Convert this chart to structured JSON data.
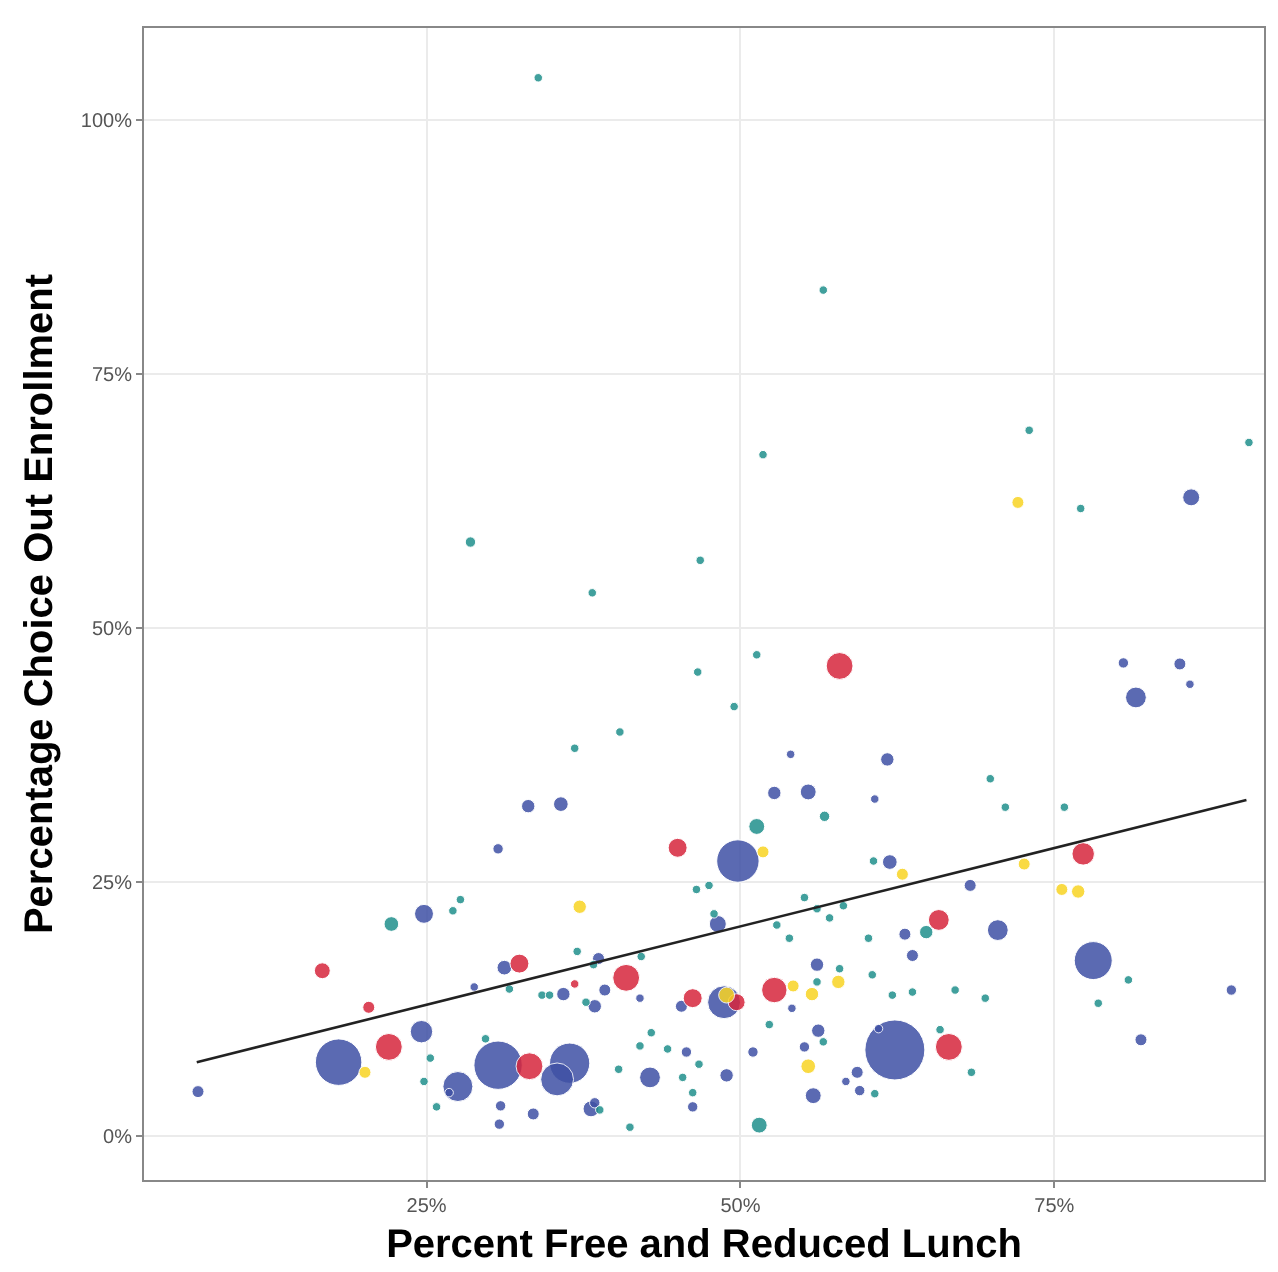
{
  "chart_data": {
    "type": "bubble",
    "xlabel": "Percent Free and Reduced Lunch",
    "ylabel": "Percentage Choice Out Enrollment",
    "xlim": [
      2.5,
      91.7
    ],
    "ylim": [
      -4.3,
      109.1
    ],
    "xticks": [
      {
        "value": 25,
        "label": "25%"
      },
      {
        "value": 50,
        "label": "50%"
      },
      {
        "value": 75,
        "label": "75%"
      }
    ],
    "yticks": [
      {
        "value": 0,
        "label": "0%"
      },
      {
        "value": 25,
        "label": "25%"
      },
      {
        "value": 50,
        "label": "50%"
      },
      {
        "value": 75,
        "label": "75%"
      },
      {
        "value": 100,
        "label": "100%"
      }
    ],
    "grid": true,
    "marker": "circle",
    "series": [
      {
        "color": "#3f51a5",
        "x": [
          85.9,
          80.5,
          85.0,
          85.8,
          81.5,
          68.3,
          70.5,
          63.1,
          63.7,
          78.1,
          89.1,
          81.9,
          62.3,
          54.0,
          61.7,
          52.7,
          55.4,
          60.7,
          33.1,
          35.7,
          49.8,
          61.9,
          48.2,
          56.1,
          38.7,
          35.9,
          39.2,
          38.4,
          45.3,
          42.0,
          48.7,
          54.1,
          36.4,
          35.4,
          42.8,
          45.7,
          51.0,
          48.9,
          56.2,
          55.1,
          59.3,
          58.4,
          59.5,
          55.8,
          46.2,
          38.1,
          38.4,
          33.5,
          30.7,
          24.8,
          31.2,
          28.8,
          24.6,
          18.0,
          27.5,
          30.7,
          30.9,
          30.8,
          26.8,
          6.8,
          61.0
        ],
        "values": [
          62.9,
          46.6,
          46.5,
          44.5,
          43.2,
          24.7,
          20.3,
          19.9,
          17.8,
          17.3,
          14.4,
          9.5,
          8.5,
          37.6,
          37.1,
          33.8,
          33.9,
          33.2,
          32.5,
          32.7,
          27.1,
          27.0,
          20.9,
          16.9,
          17.5,
          14.0,
          14.4,
          12.8,
          12.8,
          13.6,
          13.2,
          12.6,
          7.2,
          5.6,
          5.8,
          8.3,
          8.3,
          6.0,
          10.4,
          8.8,
          6.3,
          5.4,
          4.5,
          4.0,
          2.9,
          2.7,
          3.3,
          2.2,
          28.3,
          21.9,
          16.6,
          14.7,
          10.3,
          7.3,
          4.9,
          7.0,
          3.0,
          1.2,
          4.3,
          4.4,
          10.6
        ],
        "sizes": [
          0.08,
          0.03,
          0.04,
          0.02,
          0.12,
          0.04,
          0.12,
          0.04,
          0.04,
          0.4,
          0.03,
          0.04,
          1,
          0.02,
          0.05,
          0.05,
          0.07,
          0.02,
          0.05,
          0.06,
          0.5,
          0.06,
          0.08,
          0.05,
          0.04,
          0.05,
          0.04,
          0.05,
          0.04,
          0.02,
          0.3,
          0.02,
          0.45,
          0.3,
          0.12,
          0.03,
          0.03,
          0.05,
          0.05,
          0.03,
          0.04,
          0.02,
          0.03,
          0.07,
          0.03,
          0.07,
          0.03,
          0.04,
          0.03,
          0.1,
          0.06,
          0.02,
          0.14,
          0.6,
          0.25,
          0.65,
          0.03,
          0.03,
          0.02,
          0.04,
          0.02
        ]
      },
      {
        "color": "#d7263d",
        "x": [
          57.9,
          45.0,
          40.9,
          36.8,
          46.2,
          52.7,
          49.7,
          33.2,
          16.7,
          20.4,
          22.0,
          32.4,
          77.3,
          65.8,
          66.6
        ],
        "values": [
          46.3,
          28.4,
          15.6,
          15.0,
          13.6,
          14.4,
          13.2,
          6.9,
          16.3,
          12.7,
          8.8,
          17.0,
          27.8,
          21.3,
          8.8
        ],
        "sizes": [
          0.2,
          0.1,
          0.2,
          0.02,
          0.1,
          0.18,
          0.08,
          0.2,
          0.07,
          0.04,
          0.2,
          0.1,
          0.14,
          0.12,
          0.2
        ]
      },
      {
        "color": "#f9d423",
        "x": [
          72.1,
          37.2,
          51.8,
          48.9,
          54.2,
          55.7,
          57.8,
          55.4,
          62.9,
          20.1,
          72.6,
          75.6,
          76.9
        ],
        "values": [
          62.4,
          22.6,
          28.0,
          13.9,
          14.8,
          14.0,
          15.2,
          6.9,
          25.8,
          6.3,
          26.8,
          24.3,
          24.1
        ],
        "sizes": [
          0.04,
          0.05,
          0.04,
          0.07,
          0.04,
          0.05,
          0.05,
          0.06,
          0.04,
          0.04,
          0.04,
          0.04,
          0.05
        ]
      },
      {
        "color": "#21908c",
        "x": [
          33.9,
          56.6,
          28.5,
          38.2,
          46.8,
          51.8,
          73.0,
          77.1,
          90.5,
          36.8,
          40.4,
          46.6,
          49.5,
          51.3,
          51.3,
          56.7,
          46.5,
          47.5,
          55.1,
          56.1,
          57.1,
          58.2,
          52.9,
          53.9,
          60.2,
          60.6,
          47.9,
          37.0,
          42.1,
          34.2,
          34.8,
          37.7,
          57.9,
          56.1,
          62.1,
          42.9,
          42.0,
          44.2,
          46.7,
          45.4,
          46.2,
          40.3,
          52.3,
          56.6,
          60.7,
          41.2,
          51.5,
          38.8,
          22.2,
          27.1,
          27.7,
          31.6,
          29.7,
          25.3,
          24.8,
          25.8,
          69.9,
          71.1,
          75.8,
          64.8,
          63.7,
          67.1,
          69.5,
          65.9,
          68.4,
          80.9,
          78.5,
          38.3,
          60.5
        ],
        "values": [
          104.2,
          83.3,
          58.5,
          53.5,
          56.7,
          67.1,
          69.5,
          61.8,
          68.3,
          38.2,
          39.8,
          45.7,
          42.3,
          47.4,
          30.5,
          31.5,
          24.3,
          24.7,
          23.5,
          22.4,
          21.5,
          22.7,
          20.8,
          19.5,
          19.5,
          27.1,
          21.9,
          18.2,
          17.7,
          13.9,
          13.9,
          13.2,
          16.5,
          15.2,
          13.9,
          10.2,
          8.9,
          8.6,
          7.1,
          5.8,
          4.3,
          6.6,
          11.0,
          9.3,
          4.2,
          0.9,
          1.1,
          2.6,
          20.9,
          22.2,
          23.3,
          14.5,
          9.6,
          7.7,
          5.4,
          2.9,
          35.2,
          32.4,
          32.4,
          20.1,
          14.2,
          14.4,
          13.6,
          10.5,
          6.3,
          15.4,
          13.1,
          16.9,
          15.9
        ],
        "sizes": [
          0.02,
          0.02,
          0.03,
          0.02,
          0.02,
          0.02,
          0.02,
          0.02,
          0.02,
          0.02,
          0.02,
          0.02,
          0.02,
          0.02,
          0.07,
          0.03,
          0.02,
          0.02,
          0.02,
          0.02,
          0.02,
          0.02,
          0.02,
          0.02,
          0.02,
          0.02,
          0.02,
          0.02,
          0.02,
          0.02,
          0.02,
          0.02,
          0.02,
          0.02,
          0.02,
          0.02,
          0.02,
          0.02,
          0.02,
          0.02,
          0.02,
          0.02,
          0.02,
          0.02,
          0.02,
          0.02,
          0.07,
          0.02,
          0.06,
          0.02,
          0.02,
          0.02,
          0.02,
          0.02,
          0.02,
          0.02,
          0.02,
          0.02,
          0.02,
          0.05,
          0.02,
          0.02,
          0.02,
          0.02,
          0.02,
          0.02,
          0.02,
          0.02,
          0.02
        ]
      },
      {
        "type": "line",
        "color": "#222222",
        "marker": "none",
        "x": [
          6.7,
          90.3
        ],
        "values": [
          7.3,
          33.1
        ]
      }
    ]
  }
}
